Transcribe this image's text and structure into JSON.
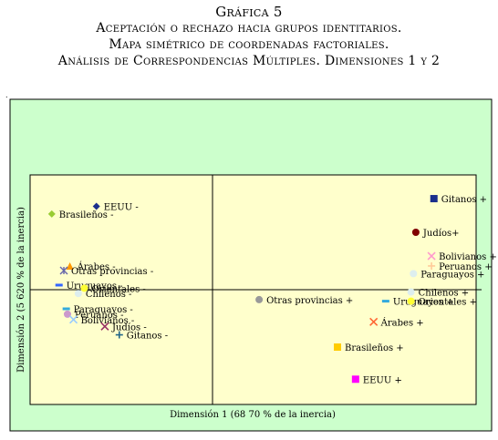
{
  "header": {
    "figure_label": "Gráfica 5",
    "title_line1": "Aceptación o rechazo hacia grupos identitarios.",
    "title_line2": "Mapa simétrico de coordenadas factoriales.",
    "title_line3": "Análisis de Correspondencias Múltiples. Dimensiones 1 y 2"
  },
  "colors": {
    "outer_panel": "#ccffcc",
    "plot_panel": "#ffffcc",
    "axis": "#000000"
  },
  "chart_data": {
    "type": "scatter",
    "xlabel": "Dimensión 1 (68 70 % de la inercia)",
    "ylabel": "Dimensión 2 (5 620 % de la inercia)",
    "xlim": [
      -1.5,
      2.2
    ],
    "ylim": [
      -1.45,
      1.55
    ],
    "grid": false,
    "legend": "none",
    "points": [
      {
        "label": "EEUU -",
        "x": -0.95,
        "y": 1.14,
        "marker": "diamond",
        "color": "#1a2e8c"
      },
      {
        "label": "Brasileños -",
        "x": -1.32,
        "y": 1.04,
        "marker": "diamond",
        "color": "#99cc33"
      },
      {
        "label": "Árabes -",
        "x": -1.17,
        "y": 0.36,
        "marker": "triangle",
        "color": "#ff9900"
      },
      {
        "label": "Otras provincias -",
        "x": -1.22,
        "y": 0.3,
        "marker": "asterisk",
        "color": "#6666aa"
      },
      {
        "label": "Uruguayos -",
        "x": -1.26,
        "y": 0.11,
        "marker": "dash",
        "color": "#3366ff"
      },
      {
        "label": "Orientales -",
        "x": -1.05,
        "y": 0.07,
        "marker": "circle",
        "color": "#ffff33"
      },
      {
        "label": "Chilenos -",
        "x": -1.1,
        "y": 0.0,
        "marker": "circle",
        "color": "#ddeeee"
      },
      {
        "label": "Paraguayos -",
        "x": -1.2,
        "y": -0.2,
        "marker": "dash",
        "color": "#33aadd"
      },
      {
        "label": "Peruanos -",
        "x": -1.19,
        "y": -0.27,
        "marker": "circle",
        "color": "#cc99cc"
      },
      {
        "label": "Bolivianos -",
        "x": -1.14,
        "y": -0.34,
        "marker": "x",
        "color": "#99ccff"
      },
      {
        "label": "Judíos -",
        "x": -0.88,
        "y": -0.43,
        "marker": "x",
        "color": "#993366"
      },
      {
        "label": "Gitanos -",
        "x": -0.76,
        "y": -0.54,
        "marker": "plus",
        "color": "#226688"
      },
      {
        "label": "Gitanos +",
        "x": 1.85,
        "y": 1.24,
        "marker": "square",
        "color": "#1a2e8c"
      },
      {
        "label": "Judíos+",
        "x": 1.7,
        "y": 0.8,
        "marker": "circle",
        "color": "#800000"
      },
      {
        "label": "Bolivianos +",
        "x": 1.83,
        "y": 0.49,
        "marker": "x",
        "color": "#ff99cc"
      },
      {
        "label": "Peruanos +",
        "x": 1.83,
        "y": 0.36,
        "marker": "plus",
        "color": "#ffcc99"
      },
      {
        "label": "Paraguayos +",
        "x": 1.68,
        "y": 0.26,
        "marker": "circle",
        "color": "#ddeeee"
      },
      {
        "label": "Chilenos +",
        "x": 1.66,
        "y": 0.02,
        "marker": "circle",
        "color": "#ddeeee"
      },
      {
        "label": "Uruguayos +",
        "x": 1.45,
        "y": -0.1,
        "marker": "dash",
        "color": "#33aadd"
      },
      {
        "label": "Orientales +",
        "x": 1.66,
        "y": -0.1,
        "marker": "circle",
        "color": "#ffff33"
      },
      {
        "label": "Otras provincias +",
        "x": 0.4,
        "y": -0.08,
        "marker": "circle",
        "color": "#999999"
      },
      {
        "label": "Árabes +",
        "x": 1.35,
        "y": -0.37,
        "marker": "x",
        "color": "#ff6633"
      },
      {
        "label": "Brasileños +",
        "x": 1.05,
        "y": -0.7,
        "marker": "square",
        "color": "#ffcc00"
      },
      {
        "label": "EEUU +",
        "x": 1.2,
        "y": -1.12,
        "marker": "square",
        "color": "#ff00ff"
      }
    ]
  }
}
